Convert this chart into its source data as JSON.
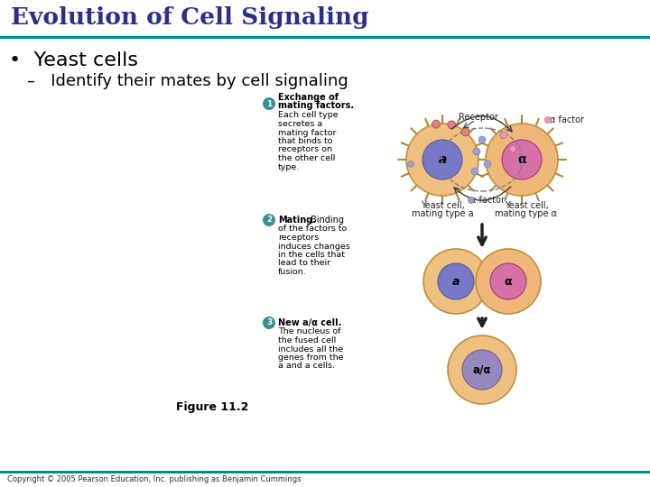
{
  "title": "Evolution of Cell Signaling",
  "bullet": "•  Yeast cells",
  "sub_bullet": "–   Identify their mates by cell signaling",
  "title_color": "#2d2d8b",
  "teal_line_color": "#008b8b",
  "background_color": "#ffffff",
  "figure_label": "Figure 11.2",
  "copyright": "Copyright © 2005 Pearson Education, Inc. publishing as Benjamin Cummings",
  "step1_bold": "Exchange of\nmating factors.",
  "step1_text": "Each cell type\nsecretes a\nmating factor\nthat binds to\nreceptors on\nthe other cell\ntype.",
  "step2_bold": "Mating.",
  "step2_text": "Binding\nof the factors to\nreceptors\ninduces changes\nin the cells that\nlead to their\nfusion.",
  "step3_bold": "New a/α cell.",
  "step3_text": "The nucleus of\nthe fused cell\nincludes all the\ngenes from the\na and a cells.",
  "cell_outer_color": "#f0c080",
  "cell_outer_color2": "#f0b878",
  "cell_inner_a_color": "#7878c8",
  "cell_inner_alpha_color": "#d870a8",
  "cell_inner_fused_color": "#9888c0",
  "receptor_color": "#e08080",
  "factor_blue_color": "#a0a0d8",
  "factor_pink_color": "#e898b8",
  "arrow_color": "#404040",
  "number_circle_color": "#3a9090",
  "spike_color": "#b08840"
}
